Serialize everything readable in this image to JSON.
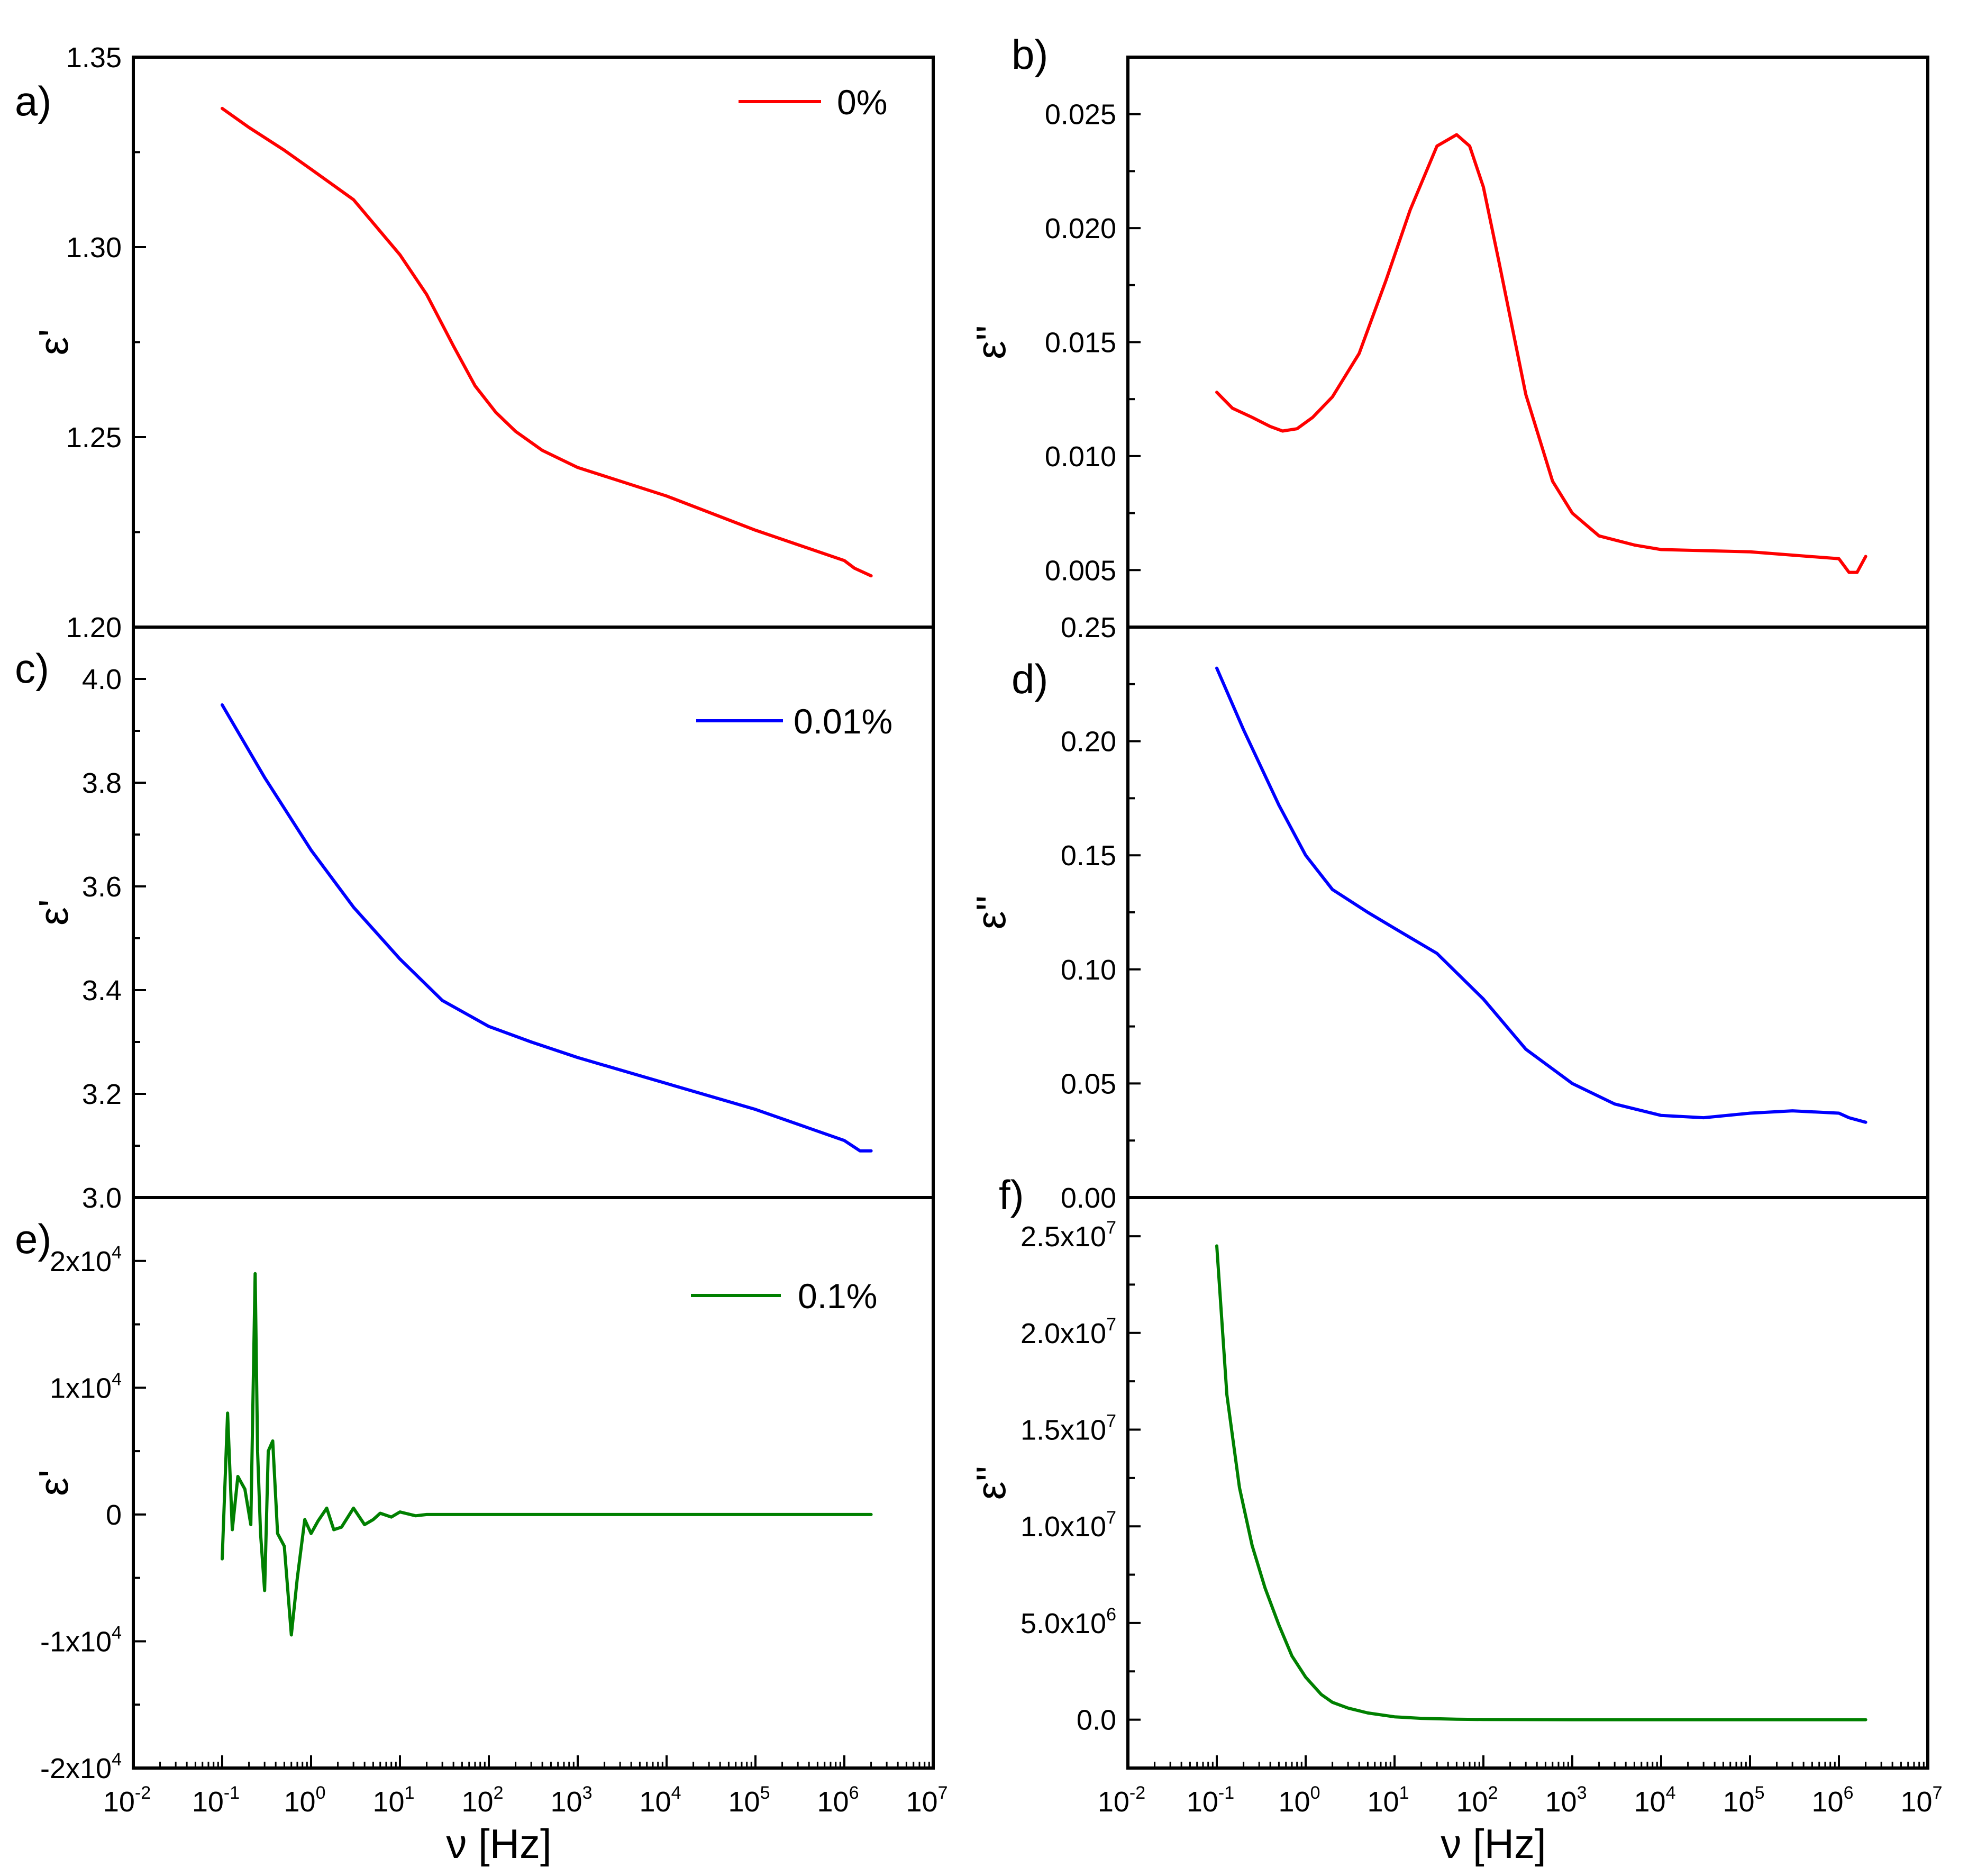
{
  "figure": {
    "x_axis": {
      "label": "ν [Hz]",
      "log": true,
      "range": [
        0.01,
        10000000
      ],
      "ticks": [
        {
          "base": "10",
          "exp": "-2",
          "value": 0.01
        },
        {
          "base": "10",
          "exp": "-1",
          "value": 0.1
        },
        {
          "base": "10",
          "exp": "0",
          "value": 1
        },
        {
          "base": "10",
          "exp": "1",
          "value": 10
        },
        {
          "base": "10",
          "exp": "2",
          "value": 100
        },
        {
          "base": "10",
          "exp": "3",
          "value": 1000
        },
        {
          "base": "10",
          "exp": "4",
          "value": 10000
        },
        {
          "base": "10",
          "exp": "5",
          "value": 100000
        },
        {
          "base": "10",
          "exp": "6",
          "value": 1000000
        },
        {
          "base": "10",
          "exp": "7",
          "value": 10000000
        }
      ]
    }
  },
  "chart_data": [
    {
      "id": "a",
      "type": "line",
      "panel_label": "a)",
      "ylabel": "ε'",
      "legend": "0%",
      "color": "#ff0000",
      "ylim": [
        1.2,
        1.35
      ],
      "yticks": [
        {
          "value": 1.2,
          "label": "1.20"
        },
        {
          "value": 1.25,
          "label": "1.25"
        },
        {
          "value": 1.3,
          "label": "1.30"
        },
        {
          "value": 1.35,
          "label": "1.35"
        }
      ],
      "x": [
        0.1,
        0.2,
        0.5,
        1,
        3,
        10,
        20,
        40,
        70,
        120,
        200,
        400,
        1000,
        10000,
        100000,
        1000000,
        1300000,
        2000000
      ],
      "y": [
        1.3365,
        1.3315,
        1.3255,
        1.3205,
        1.3125,
        1.298,
        1.2875,
        1.274,
        1.2635,
        1.2565,
        1.2515,
        1.2465,
        1.242,
        1.2345,
        1.2255,
        1.2175,
        1.2155,
        1.2135
      ]
    },
    {
      "id": "b",
      "type": "line",
      "panel_label": "b)",
      "ylabel": "ε''",
      "color": "#ff0000",
      "ylim": [
        0.0025,
        0.0275
      ],
      "yticks": [
        {
          "value": 0.005,
          "label": "0.005"
        },
        {
          "value": 0.01,
          "label": "0.010"
        },
        {
          "value": 0.015,
          "label": "0.015"
        },
        {
          "value": 0.02,
          "label": "0.020"
        },
        {
          "value": 0.025,
          "label": "0.025"
        }
      ],
      "x": [
        0.1,
        0.15,
        0.25,
        0.4,
        0.55,
        0.8,
        1.2,
        2,
        4,
        8,
        15,
        30,
        50,
        70,
        100,
        150,
        300,
        600,
        1000,
        2000,
        5000,
        10000,
        100000,
        1000000,
        1300000,
        1600000,
        2000000
      ],
      "y": [
        0.0128,
        0.0121,
        0.0117,
        0.0113,
        0.0111,
        0.0112,
        0.0117,
        0.0126,
        0.0145,
        0.0177,
        0.0208,
        0.0236,
        0.0241,
        0.0236,
        0.0218,
        0.0185,
        0.0127,
        0.0089,
        0.0075,
        0.0065,
        0.0061,
        0.0059,
        0.0058,
        0.0055,
        0.0049,
        0.0049,
        0.0056
      ]
    },
    {
      "id": "c",
      "type": "line",
      "panel_label": "c)",
      "ylabel": "ε'",
      "legend": "0.01%",
      "color": "#0000ff",
      "ylim": [
        3.0,
        4.1
      ],
      "yticks": [
        {
          "value": 3.0,
          "label": "3.0"
        },
        {
          "value": 3.2,
          "label": "3.2"
        },
        {
          "value": 3.4,
          "label": "3.4"
        },
        {
          "value": 3.6,
          "label": "3.6"
        },
        {
          "value": 3.8,
          "label": "3.8"
        },
        {
          "value": 4.0,
          "label": "4.0"
        }
      ],
      "x": [
        0.1,
        0.3,
        1,
        3,
        10,
        30,
        100,
        300,
        1000,
        10000,
        100000,
        1000000,
        1500000,
        2000000
      ],
      "y": [
        3.95,
        3.81,
        3.67,
        3.56,
        3.46,
        3.38,
        3.33,
        3.3,
        3.27,
        3.22,
        3.17,
        3.11,
        3.09,
        3.09
      ]
    },
    {
      "id": "d",
      "type": "line",
      "panel_label": "d)",
      "ylabel": "ε''",
      "color": "#0000ff",
      "ylim": [
        0.0,
        0.25
      ],
      "yticks": [
        {
          "value": 0.0,
          "label": "0.00"
        },
        {
          "value": 0.05,
          "label": "0.05"
        },
        {
          "value": 0.1,
          "label": "0.10"
        },
        {
          "value": 0.15,
          "label": "0.15"
        },
        {
          "value": 0.2,
          "label": "0.20"
        },
        {
          "value": 0.25,
          "label": "0.25"
        }
      ],
      "x": [
        0.1,
        0.2,
        0.5,
        1,
        2,
        5,
        10,
        30,
        100,
        300,
        1000,
        3000,
        10000,
        30000,
        100000,
        300000,
        1000000,
        1300000,
        2000000
      ],
      "y": [
        0.232,
        0.205,
        0.172,
        0.15,
        0.135,
        0.125,
        0.118,
        0.107,
        0.087,
        0.065,
        0.05,
        0.041,
        0.036,
        0.035,
        0.037,
        0.038,
        0.037,
        0.035,
        0.033
      ]
    },
    {
      "id": "e",
      "type": "line",
      "panel_label": "e)",
      "ylabel": "ε'",
      "legend": "0.1%",
      "color": "#008000",
      "ylim": [
        -20000,
        25000
      ],
      "yticks": [
        {
          "value": -20000,
          "mant": "-2x10",
          "exp": "4"
        },
        {
          "value": -10000,
          "mant": "-1x10",
          "exp": "4"
        },
        {
          "value": 0,
          "mant": "0",
          "exp": ""
        },
        {
          "value": 10000,
          "mant": "1x10",
          "exp": "4"
        },
        {
          "value": 20000,
          "mant": "2x10",
          "exp": "4"
        }
      ],
      "x": [
        0.1,
        0.115,
        0.13,
        0.15,
        0.18,
        0.21,
        0.235,
        0.25,
        0.27,
        0.3,
        0.33,
        0.37,
        0.42,
        0.5,
        0.6,
        0.7,
        0.85,
        1,
        1.2,
        1.5,
        1.8,
        2.2,
        3,
        4,
        5,
        6,
        8,
        10,
        15,
        20,
        100,
        1000000,
        2000000
      ],
      "y": [
        -3500,
        8000,
        -1200,
        3000,
        2000,
        -800,
        19000,
        5000,
        -1500,
        -6000,
        5000,
        5800,
        -1500,
        -2500,
        -9500,
        -5000,
        -400,
        -1500,
        -500,
        500,
        -1200,
        -1000,
        500,
        -800,
        -400,
        100,
        -200,
        200,
        -100,
        0,
        0,
        0,
        0
      ]
    },
    {
      "id": "f",
      "type": "line",
      "panel_label": "f)",
      "ylabel": "ε''",
      "color": "#008000",
      "ylim": [
        -2500000,
        27000000
      ],
      "yticks": [
        {
          "value": 0,
          "mant": "0.0",
          "exp": ""
        },
        {
          "value": 5000000,
          "mant": "5.0x10",
          "exp": "6"
        },
        {
          "value": 10000000,
          "mant": "1.0x10",
          "exp": "7"
        },
        {
          "value": 15000000,
          "mant": "1.5x10",
          "exp": "7"
        },
        {
          "value": 20000000,
          "mant": "2.0x10",
          "exp": "7"
        },
        {
          "value": 25000000,
          "mant": "2.5x10",
          "exp": "7"
        }
      ],
      "x": [
        0.1,
        0.13,
        0.18,
        0.25,
        0.35,
        0.5,
        0.7,
        1,
        1.5,
        2,
        3,
        5,
        10,
        20,
        50,
        100,
        1000,
        100000,
        2000000
      ],
      "y": [
        24500000,
        16800000,
        12000000,
        9000000,
        6800000,
        4900000,
        3300000,
        2200000,
        1300000,
        900000,
        600000,
        350000,
        150000,
        70000,
        25000,
        10000,
        1000,
        0,
        0
      ]
    }
  ]
}
